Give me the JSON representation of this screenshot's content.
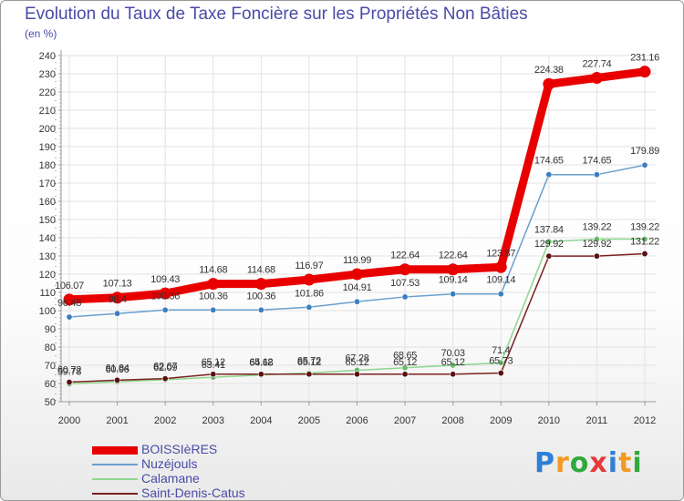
{
  "title": "Evolution du Taux de Taxe Foncière sur les Propriétés Non Bâties",
  "unit_label": "(en %)",
  "logo": {
    "text": "Proxiti",
    "letters": [
      "P",
      "r",
      "o",
      "x",
      "i",
      "t",
      "i"
    ],
    "colors": [
      "#2e7fd6",
      "#f29a22",
      "#2eaa3c",
      "#e53a3a",
      "#2e7fd6",
      "#f29a22",
      "#2eaa3c"
    ]
  },
  "chart_data": {
    "type": "line",
    "title": "Evolution du Taux de Taxe Foncière sur les Propriétés Non Bâties",
    "ylabel": "(en %)",
    "xlabel": "",
    "x": [
      "2000",
      "2001",
      "2002",
      "2003",
      "2004",
      "2005",
      "2006",
      "2007",
      "2008",
      "2009",
      "2010",
      "2011",
      "2012"
    ],
    "ylim": [
      50,
      240
    ],
    "yticks": [
      50,
      60,
      70,
      80,
      90,
      100,
      110,
      120,
      130,
      140,
      150,
      160,
      170,
      180,
      190,
      200,
      210,
      220,
      230,
      240
    ],
    "grid": true,
    "legend_position": "bottom-left",
    "series": [
      {
        "name": "BOISSIèRES",
        "color": "#e80000",
        "width": 9,
        "values": [
          106.07,
          107.13,
          109.43,
          114.68,
          114.68,
          116.97,
          119.99,
          122.64,
          122.64,
          123.87,
          224.38,
          227.74,
          231.16
        ],
        "labels": [
          "106.07",
          "107.13",
          "109.43",
          "114.68",
          "114.68",
          "116.97",
          "119.99",
          "122.64",
          "122.64",
          "123.87",
          "224.38",
          "227.74",
          "231.16"
        ]
      },
      {
        "name": "Nuzéjouls",
        "color": "#6a9fcf",
        "width": 1.5,
        "values": [
          96.48,
          98.4,
          100.36,
          100.36,
          100.36,
          101.86,
          104.91,
          107.53,
          109.14,
          109.14,
          174.65,
          174.65,
          179.89
        ],
        "labels": [
          "96.48",
          "98.4",
          "100.36",
          "100.36",
          "100.36",
          "101.86",
          "104.91",
          "107.53",
          "109.14",
          "109.14",
          "174.65",
          "174.65",
          "179.89"
        ]
      },
      {
        "name": "Calamane",
        "color": "#8ed68e",
        "width": 1.5,
        "values": [
          59.78,
          60.96,
          62.09,
          63.41,
          64.68,
          65.72,
          67.28,
          68.65,
          70.03,
          71.4,
          137.84,
          139.22,
          139.22
        ],
        "labels": [
          "59.78",
          "60.96",
          "62.09",
          "63.41",
          "64.68",
          "65.72",
          "67.28",
          "68.65",
          "70.03",
          "71.4",
          "137.84",
          "139.22",
          "139.22"
        ]
      },
      {
        "name": "Saint-Denis-Catus",
        "color": "#7a1f1f",
        "width": 1.5,
        "values": [
          60.72,
          61.84,
          62.67,
          65.12,
          65.12,
          65.12,
          65.12,
          65.12,
          65.12,
          65.73,
          129.92,
          129.92,
          131.22
        ],
        "labels": [
          "60.72",
          "61.84",
          "62.67",
          "65.12",
          "65.12",
          "65.12",
          "65.12",
          "65.12",
          "65.12",
          "65.73",
          "129.92",
          "129.92",
          "131.22"
        ]
      }
    ]
  }
}
